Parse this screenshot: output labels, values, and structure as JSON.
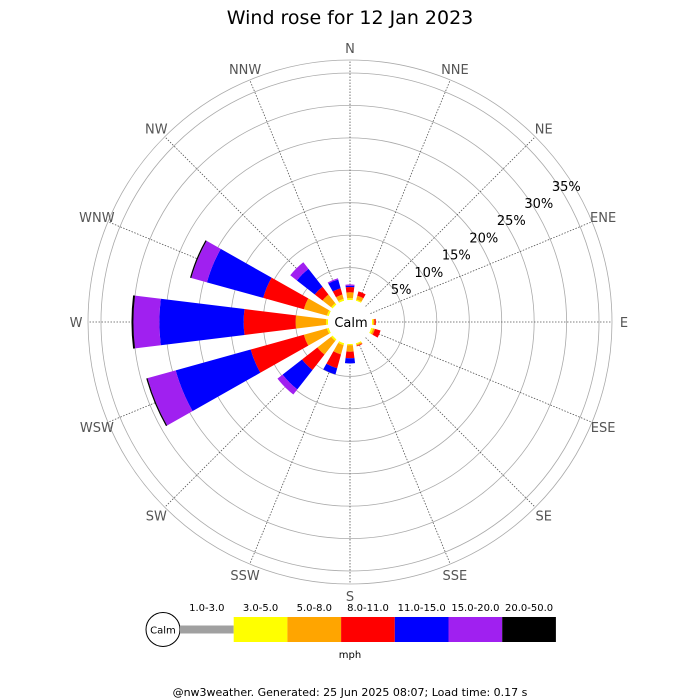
{
  "chart_data": {
    "type": "wind-rose",
    "title": "Wind rose for 12 Jan 2023",
    "directions": [
      "N",
      "NNE",
      "NE",
      "ENE",
      "E",
      "ESE",
      "SE",
      "SSE",
      "S",
      "SSW",
      "SW",
      "WSW",
      "W",
      "WNW",
      "NW",
      "NNW"
    ],
    "ring_labels": [
      "5%",
      "10%",
      "15%",
      "20%",
      "25%",
      "30%",
      "35%"
    ],
    "rings_percent": [
      5,
      10,
      15,
      20,
      25,
      30,
      35
    ],
    "max_percent": 37,
    "calm_label": "Calm",
    "unit": "mph",
    "bins": [
      {
        "label": "1.0-3.0",
        "color": "#a0a0a0"
      },
      {
        "label": "3.0-5.0",
        "color": "#ffff00"
      },
      {
        "label": "5.0-8.0",
        "color": "#ffa500"
      },
      {
        "label": "8.0-11.0",
        "color": "#ff0000"
      },
      {
        "label": "11.0-15.0",
        "color": "#0000ff"
      },
      {
        "label": "15.0-20.0",
        "color": "#a020f0"
      },
      {
        "label": "20.0-50.0",
        "color": "#000000"
      }
    ],
    "series_cumulative_percent": {
      "N": [
        0.0,
        0.3,
        1.2,
        2.0,
        2.2,
        2.4,
        2.4
      ],
      "NNE": [
        0.0,
        0.2,
        0.8,
        1.5,
        1.5,
        1.5,
        1.5
      ],
      "NE": [
        0.0,
        0.0,
        0.0,
        0.0,
        0.0,
        0.0,
        0.0
      ],
      "ENE": [
        0.0,
        0.0,
        0.0,
        0.0,
        0.0,
        0.0,
        0.0
      ],
      "E": [
        0.0,
        0.2,
        0.4,
        0.6,
        0.6,
        0.6,
        0.6
      ],
      "ESE": [
        0.0,
        0.3,
        0.6,
        1.5,
        1.5,
        1.5,
        1.5
      ],
      "SE": [
        0.0,
        0.0,
        0.0,
        0.0,
        0.0,
        0.0,
        0.0
      ],
      "SSE": [
        0.0,
        0.2,
        0.4,
        0.5,
        0.5,
        0.5,
        0.5
      ],
      "S": [
        0.0,
        0.2,
        1.2,
        2.2,
        3.0,
        3.0,
        3.0
      ],
      "SSW": [
        0.0,
        0.3,
        1.8,
        4.0,
        5.0,
        5.0,
        5.0
      ],
      "SW": [
        0.0,
        0.3,
        3.0,
        6.0,
        9.8,
        10.8,
        10.8
      ],
      "WSW": [
        0.0,
        0.3,
        4.0,
        12.5,
        24.5,
        29.0,
        29.2
      ],
      "W": [
        0.0,
        0.3,
        5.0,
        13.0,
        26.0,
        30.0,
        30.3
      ],
      "WNW": [
        0.0,
        0.3,
        4.0,
        10.5,
        19.5,
        22.0,
        22.2
      ],
      "NW": [
        0.0,
        0.3,
        2.0,
        3.5,
        7.0,
        8.3,
        8.3
      ],
      "NNW": [
        0.0,
        0.3,
        1.0,
        2.0,
        3.4,
        3.6,
        3.6
      ]
    }
  },
  "footer_text": "@nw3weather. Generated: 25 Jun 2025 08:07; Load time: 0.17 s"
}
